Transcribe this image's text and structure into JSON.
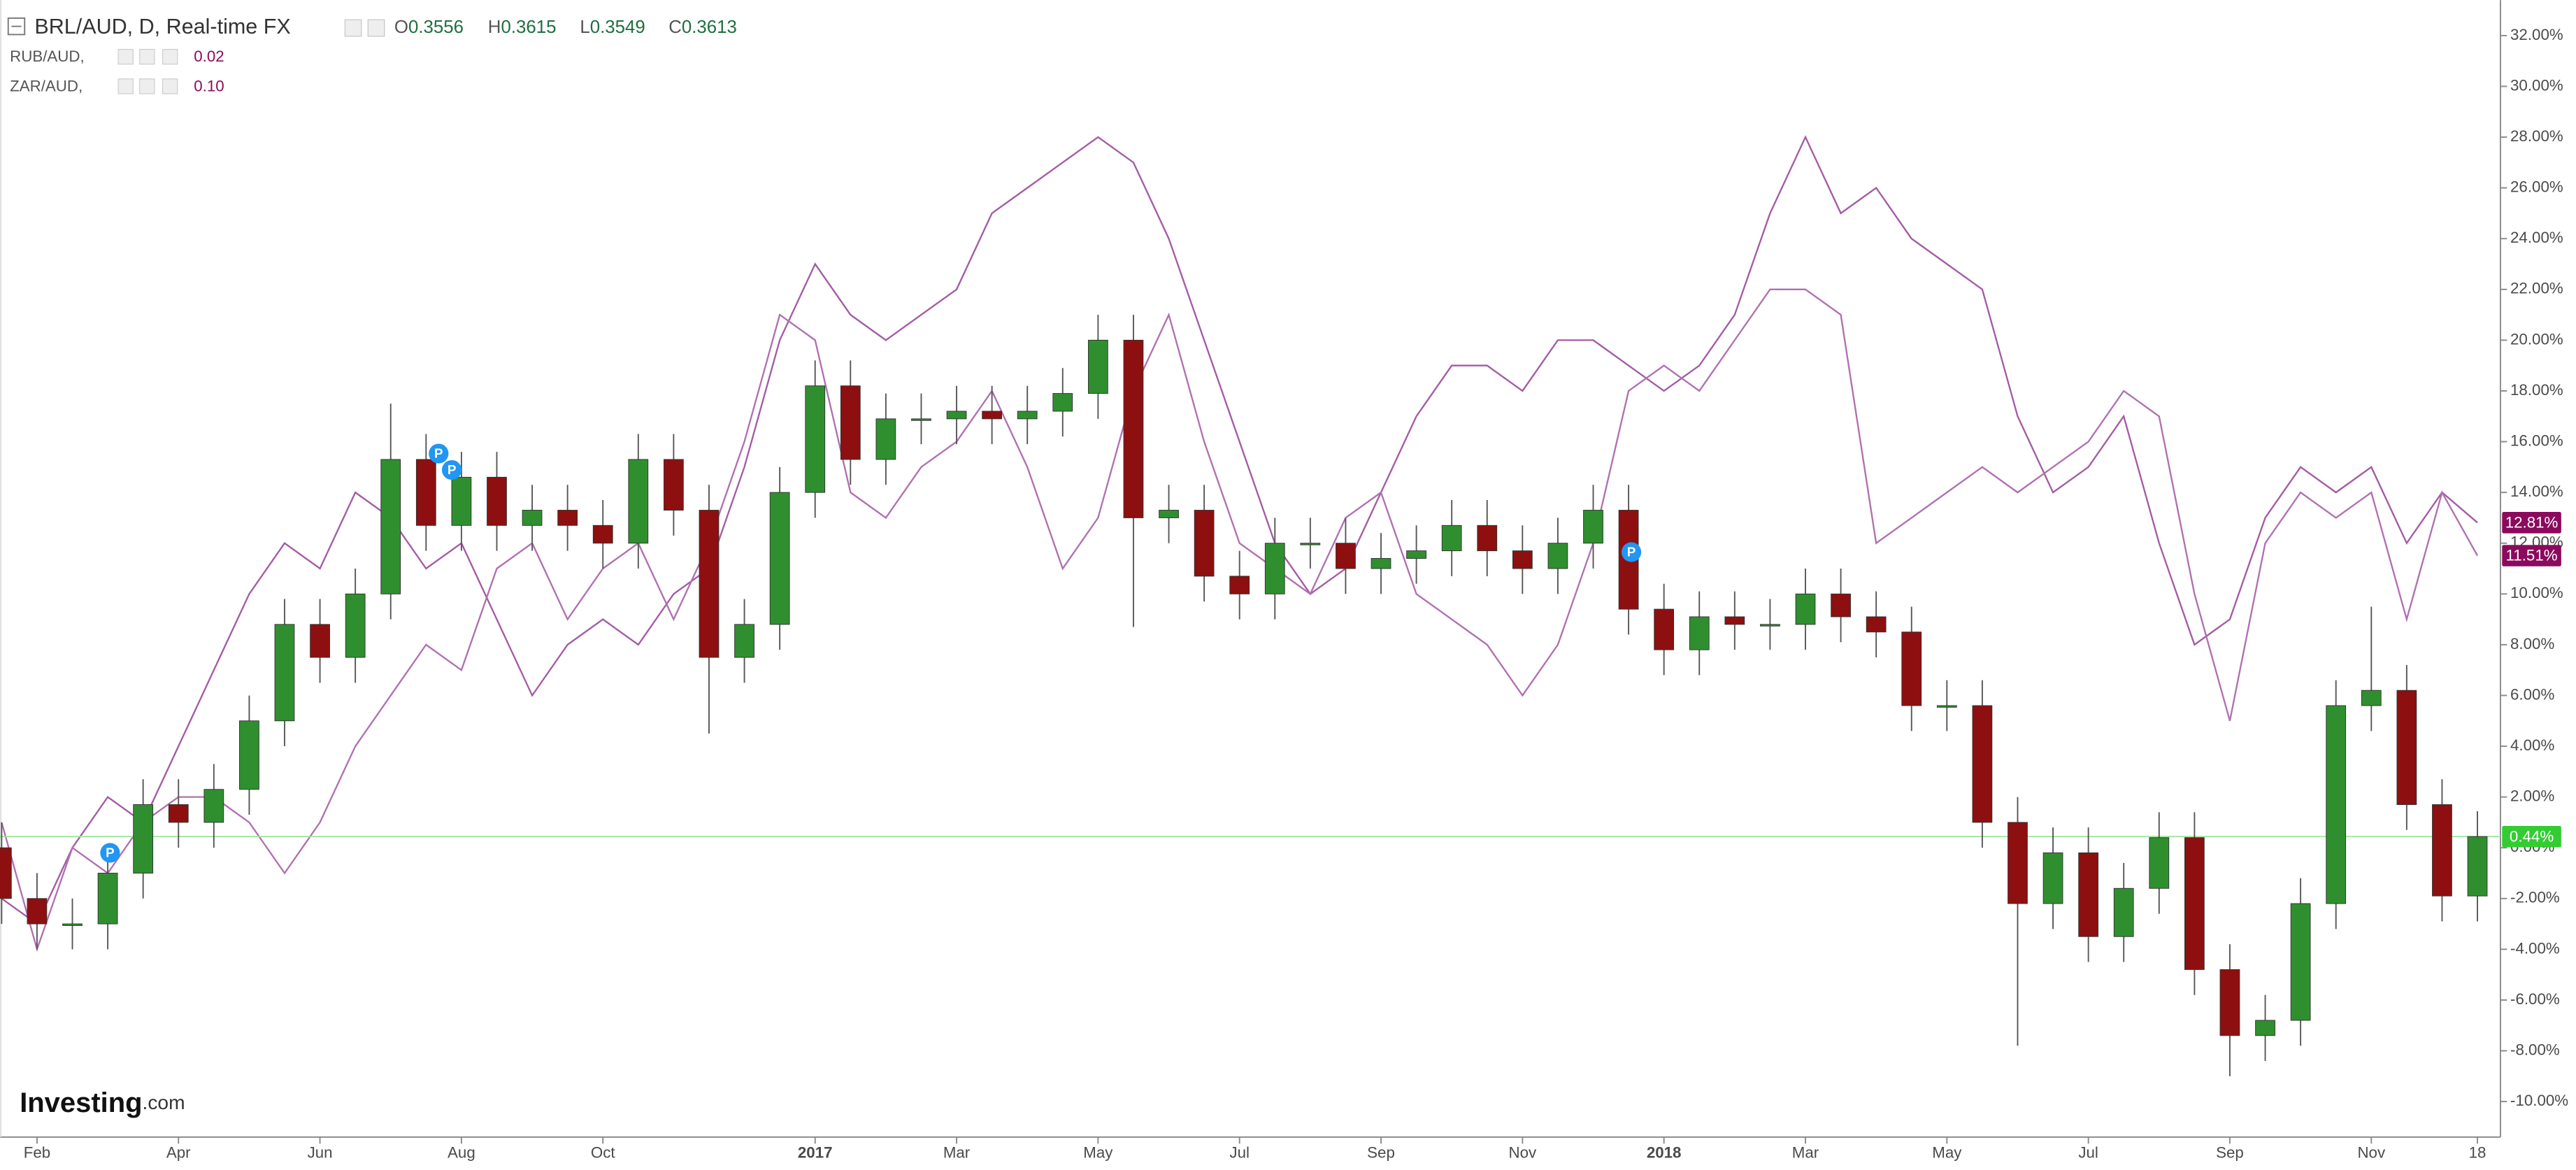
{
  "chart_data": {
    "type": "candlestick",
    "title": "BRL/AUD, D, Real-time FX",
    "ohlc": [
      {
        "key": "O",
        "value": 0.3556
      },
      {
        "key": "H",
        "value": 0.3615
      },
      {
        "key": "L",
        "value": 0.3549
      },
      {
        "key": "C",
        "value": 0.3613
      }
    ],
    "logo": {
      "brand": "Investing",
      "suffix": ".com"
    },
    "event_marker_label": "P",
    "categories": [
      null,
      "Feb",
      null,
      null,
      null,
      "Apr",
      null,
      null,
      null,
      "Jun",
      null,
      null,
      null,
      "Aug",
      null,
      null,
      null,
      "Oct",
      null,
      null,
      null,
      null,
      null,
      "2017",
      null,
      null,
      null,
      "Mar",
      null,
      null,
      null,
      "May",
      null,
      null,
      null,
      "Jul",
      null,
      null,
      null,
      "Sep",
      null,
      null,
      null,
      "Nov",
      null,
      null,
      null,
      "2018",
      null,
      null,
      null,
      "Mar",
      null,
      null,
      null,
      "May",
      null,
      null,
      null,
      "Jul",
      null,
      null,
      null,
      "Sep",
      null,
      null,
      null,
      "Nov",
      null,
      null,
      "18"
    ],
    "ylim": [
      -11.4,
      33.4
    ],
    "yticks": [
      {
        "value": -10,
        "label": "-10.00%"
      },
      {
        "value": -8,
        "label": "-8.00%"
      },
      {
        "value": -6,
        "label": "-6.00%"
      },
      {
        "value": -4,
        "label": "-4.00%"
      },
      {
        "value": -2,
        "label": "-2.00%"
      },
      {
        "value": 0,
        "label": "0.00%"
      },
      {
        "value": 2,
        "label": "2.00%"
      },
      {
        "value": 4,
        "label": "4.00%"
      },
      {
        "value": 6,
        "label": "6.00%"
      },
      {
        "value": 8,
        "label": "8.00%"
      },
      {
        "value": 10,
        "label": "10.00%"
      },
      {
        "value": 12,
        "label": "12.00%"
      },
      {
        "value": 14,
        "label": "14.00%"
      },
      {
        "value": 16,
        "label": "16.00%"
      },
      {
        "value": 18,
        "label": "18.00%"
      },
      {
        "value": 20,
        "label": "20.00%"
      },
      {
        "value": 22,
        "label": "22.00%"
      },
      {
        "value": 24,
        "label": "24.00%"
      },
      {
        "value": 26,
        "label": "26.00%"
      },
      {
        "value": 28,
        "label": "28.00%"
      },
      {
        "value": 30,
        "label": "30.00%"
      },
      {
        "value": 32,
        "label": "32.00%"
      }
    ],
    "grid": false,
    "series": [
      {
        "type": "candlestick",
        "up_color": "#2f8f2f",
        "down_color": "#8e0f0f",
        "last_label": "0.44%",
        "last_color": "#33cc33",
        "open": [
          0,
          -2,
          -3,
          -3,
          -1,
          1.7,
          1,
          2.3,
          5,
          8.8,
          7.5,
          10,
          15.3,
          12.7,
          14.6,
          12.7,
          13.3,
          12.7,
          12,
          15.3,
          13.3,
          7.5,
          8.8,
          14,
          18.2,
          15.3,
          16.9,
          16.9,
          17.2,
          16.9,
          17.2,
          17.9,
          20,
          13,
          13.3,
          10.7,
          10,
          12,
          12,
          11,
          11.4,
          11.7,
          12.7,
          11.7,
          11,
          12,
          13.3,
          9.4,
          7.8,
          9.1,
          8.8,
          8.8,
          10,
          9.1,
          8.5,
          5.6,
          5.6,
          1,
          -2.2,
          -0.2,
          -3.5,
          -1.6,
          0.4,
          -4.8,
          -7.4,
          -6.8,
          -2.2,
          5.6,
          6.2,
          1.7,
          -1.9
        ],
        "high": [
          1,
          -1,
          -2,
          0,
          2.7,
          2.7,
          3.3,
          6,
          9.8,
          9.8,
          11,
          17.5,
          16.3,
          15.6,
          15.6,
          14.3,
          14.3,
          13.7,
          16.3,
          16.3,
          14.3,
          9.8,
          15,
          19.2,
          19.2,
          17.9,
          17.9,
          18.2,
          18.2,
          18.2,
          18.9,
          21,
          21,
          14.3,
          14.3,
          11.7,
          13,
          13,
          13,
          12.4,
          12.7,
          13.7,
          13.7,
          12.7,
          13,
          14.3,
          14.3,
          10.4,
          10.1,
          10.1,
          9.8,
          11,
          11,
          10.1,
          9.5,
          6.6,
          6.6,
          2,
          0.8,
          0.8,
          -0.6,
          1.4,
          1.4,
          -3.8,
          -5.8,
          -1.2,
          6.6,
          9.5,
          7.2,
          2.7,
          1.44
        ],
        "low": [
          -3,
          -4,
          -4,
          -4,
          -2,
          0,
          0,
          1.3,
          4,
          6.5,
          6.5,
          9,
          11.7,
          11.7,
          11.7,
          11.7,
          11.7,
          11,
          11,
          12.3,
          4.5,
          6.5,
          7.8,
          13,
          14.3,
          14.3,
          15.9,
          15.9,
          15.9,
          15.9,
          16.2,
          16.9,
          8.7,
          12,
          9.7,
          9,
          9,
          11,
          10,
          10,
          10.4,
          10.7,
          10.7,
          10,
          10,
          11,
          8.4,
          6.8,
          6.8,
          7.8,
          7.8,
          7.8,
          8.1,
          7.5,
          4.6,
          4.6,
          0,
          -7.8,
          -3.2,
          -4.5,
          -4.5,
          -2.6,
          -5.8,
          -9,
          -8.4,
          -7.8,
          -3.2,
          4.6,
          0.7,
          -2.9,
          -2.9
        ],
        "close": [
          -2,
          -3,
          -3,
          -1,
          1.7,
          1,
          2.3,
          5,
          8.8,
          7.5,
          10,
          15.3,
          12.7,
          14.6,
          12.7,
          13.3,
          12.7,
          12,
          15.3,
          13.3,
          7.5,
          8.8,
          14,
          18.2,
          15.3,
          16.9,
          16.9,
          17.2,
          16.9,
          17.2,
          17.9,
          20,
          13,
          13.3,
          10.7,
          10,
          12,
          12,
          11,
          11.4,
          11.7,
          12.7,
          11.7,
          11,
          12,
          13.3,
          9.4,
          7.8,
          9.1,
          8.8,
          8.8,
          10,
          9.1,
          8.5,
          5.6,
          5.6,
          1,
          -2.2,
          -0.2,
          -3.5,
          -1.6,
          0.4,
          -4.8,
          -7.4,
          -6.8,
          -2.2,
          5.6,
          6.2,
          1.7,
          -1.9,
          0.44
        ]
      },
      {
        "type": "line",
        "name": "RUB/AUD,",
        "legend_value": "0.02",
        "color": "#a45ba4",
        "label_color": "#8b0a5e",
        "last_label": "12.81%",
        "values": [
          -2,
          -3,
          0,
          2,
          1,
          4,
          7,
          10,
          12,
          11,
          14,
          13,
          11,
          12,
          9,
          6,
          8,
          9,
          8,
          10,
          11,
          15,
          20,
          23,
          21,
          20,
          21,
          22,
          25,
          26,
          27,
          28,
          27,
          24,
          20,
          16,
          12,
          10,
          11,
          14,
          17,
          19,
          19,
          18,
          20,
          20,
          19,
          18,
          19,
          21,
          25,
          28,
          25,
          26,
          24,
          23,
          22,
          17,
          14,
          15,
          17,
          12,
          8,
          9,
          13,
          15,
          14,
          15,
          12,
          14,
          12.81
        ]
      },
      {
        "type": "line",
        "name": "ZAR/AUD,",
        "legend_value": "0.10",
        "color": "#b070b0",
        "label_color": "#8b0a5e",
        "last_label": "11.51%",
        "values": [
          1,
          -4,
          0,
          -1,
          1,
          2,
          2,
          1,
          -1,
          1,
          4,
          6,
          8,
          7,
          11,
          12,
          9,
          11,
          12,
          9,
          12,
          16,
          21,
          20,
          14,
          13,
          15,
          16,
          18,
          15,
          11,
          13,
          18,
          21,
          16,
          12,
          11,
          10,
          13,
          14,
          10,
          9,
          8,
          6,
          8,
          12,
          18,
          19,
          18,
          20,
          22,
          22,
          21,
          12,
          13,
          14,
          15,
          14,
          15,
          16,
          18,
          17,
          10,
          5,
          12,
          14,
          13,
          14,
          9,
          14,
          11.51
        ]
      }
    ]
  }
}
